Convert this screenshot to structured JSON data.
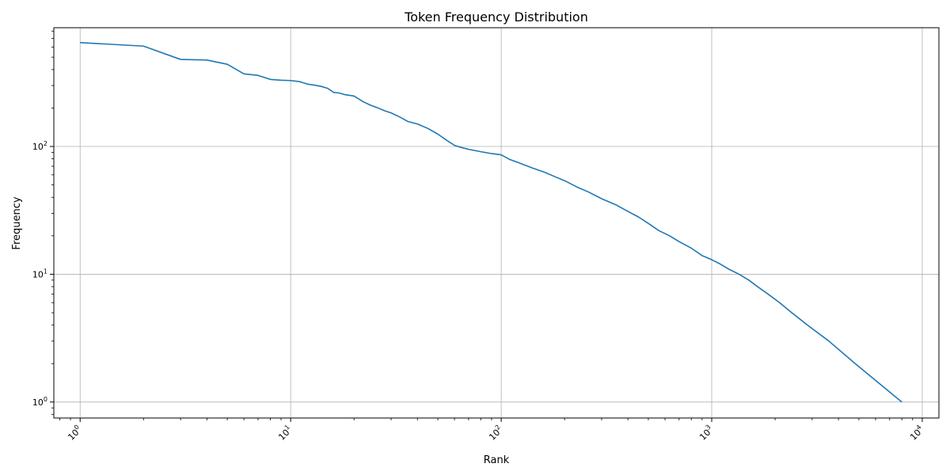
{
  "chart_data": {
    "type": "line",
    "title": "Token Frequency Distribution",
    "xlabel": "Rank",
    "ylabel": "Frequency",
    "xscale": "log",
    "yscale": "log",
    "xlim": [
      0.75,
      12000
    ],
    "ylim": [
      0.75,
      850
    ],
    "grid": true,
    "line_color": "#1f77b4",
    "x_ticks": [
      {
        "base": "10",
        "exp": "0",
        "value": 1
      },
      {
        "base": "10",
        "exp": "1",
        "value": 10
      },
      {
        "base": "10",
        "exp": "2",
        "value": 100
      },
      {
        "base": "10",
        "exp": "3",
        "value": 1000
      },
      {
        "base": "10",
        "exp": "4",
        "value": 10000
      }
    ],
    "y_ticks": [
      {
        "base": "10",
        "exp": "0",
        "value": 1
      },
      {
        "base": "10",
        "exp": "1",
        "value": 10
      },
      {
        "base": "10",
        "exp": "2",
        "value": 100
      }
    ],
    "series": [
      {
        "x": [
          1,
          2,
          3,
          4,
          5,
          6,
          7,
          8,
          9,
          10,
          11,
          12,
          13,
          14,
          15,
          16,
          17,
          18,
          20,
          22,
          24,
          26,
          28,
          30,
          33,
          36,
          40,
          45,
          50,
          55,
          60,
          65,
          70,
          80,
          90,
          100,
          110,
          120,
          140,
          160,
          180,
          200,
          230,
          260,
          300,
          350,
          400,
          450,
          500,
          560,
          630,
          700,
          800,
          900,
          1000,
          1100,
          1200,
          1350,
          1500,
          1650,
          1850,
          2100,
          2400,
          2850,
          3600,
          4800,
          8000
        ],
        "y": [
          650,
          610,
          480,
          475,
          440,
          370,
          360,
          335,
          330,
          328,
          322,
          308,
          302,
          295,
          285,
          265,
          262,
          255,
          248,
          225,
          210,
          200,
          190,
          183,
          170,
          157,
          150,
          138,
          125,
          112,
          102,
          98,
          95,
          91,
          88,
          86,
          79,
          75,
          68,
          63,
          58,
          54,
          48,
          44,
          39,
          35,
          31,
          28,
          25,
          22,
          20,
          18,
          16,
          14,
          13,
          12,
          11,
          10,
          9,
          8,
          7,
          6,
          5,
          4,
          3,
          2,
          1
        ]
      }
    ]
  }
}
